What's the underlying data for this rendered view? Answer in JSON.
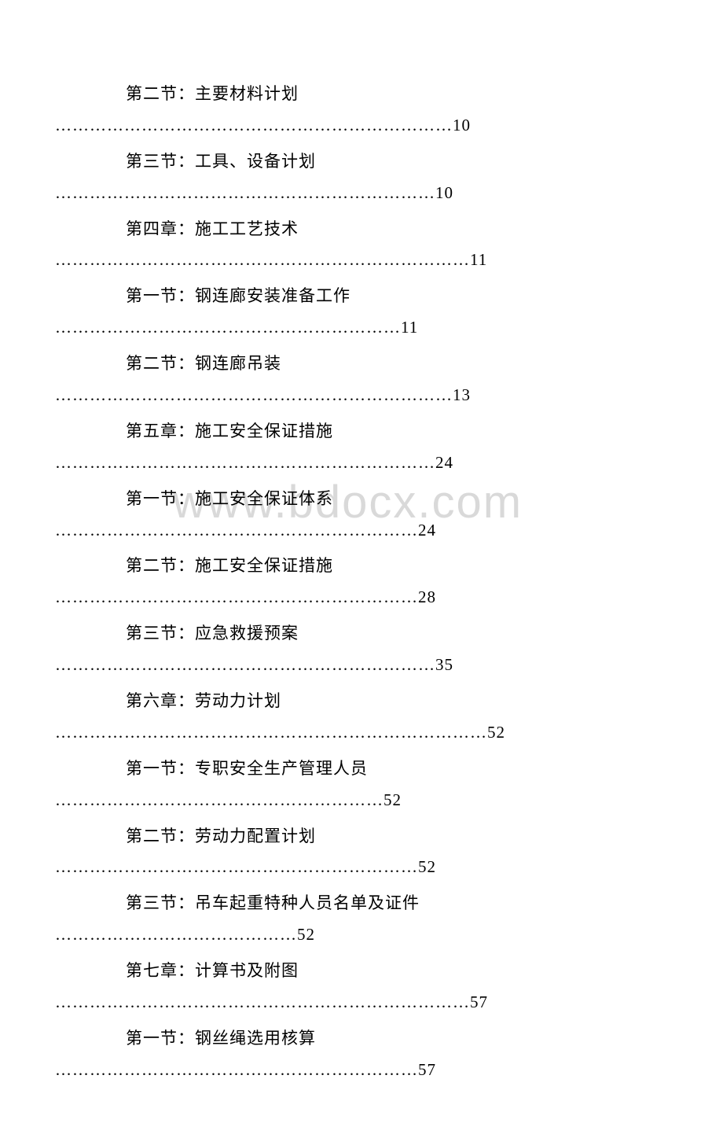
{
  "watermark": "www.bdocx.com",
  "toc": [
    {
      "title": "第二节：主要材料计划",
      "leader": "……………………………………………………………10"
    },
    {
      "title": "第三节：工具、设备计划",
      "leader": "…………………………………………………………10"
    },
    {
      "title": "第四章：施工工艺技术",
      "leader": "………………………………………………………………11"
    },
    {
      "title": "第一节：钢连廊安装准备工作",
      "leader": "……………………………………………………11"
    },
    {
      "title": "第二节：钢连廊吊装",
      "leader": "……………………………………………………………13"
    },
    {
      "title": "第五章：施工安全保证措施",
      "leader": "…………………………………………………………24"
    },
    {
      "title": "第一节：施工安全保证体系",
      "leader": "………………………………………………………24"
    },
    {
      "title": "第二节：施工安全保证措施",
      "leader": "………………………………………………………28"
    },
    {
      "title": "第三节：应急救援预案",
      "leader": "…………………………………………………………35"
    },
    {
      "title": "第六章：劳动力计划",
      "leader": "…………………………………………………………………52"
    },
    {
      "title": "第一节：专职安全生产管理人员",
      "leader": "…………………………………………………52"
    },
    {
      "title": "第二节：劳动力配置计划",
      "leader": "………………………………………………………52"
    },
    {
      "title": "第三节：吊车起重特种人员名单及证件",
      "leader": "……………………………………52"
    },
    {
      "title": "第七章：计算书及附图",
      "leader": "………………………………………………………………57"
    },
    {
      "title": "第一节：钢丝绳选用核算",
      "leader": "………………………………………………………57"
    }
  ]
}
